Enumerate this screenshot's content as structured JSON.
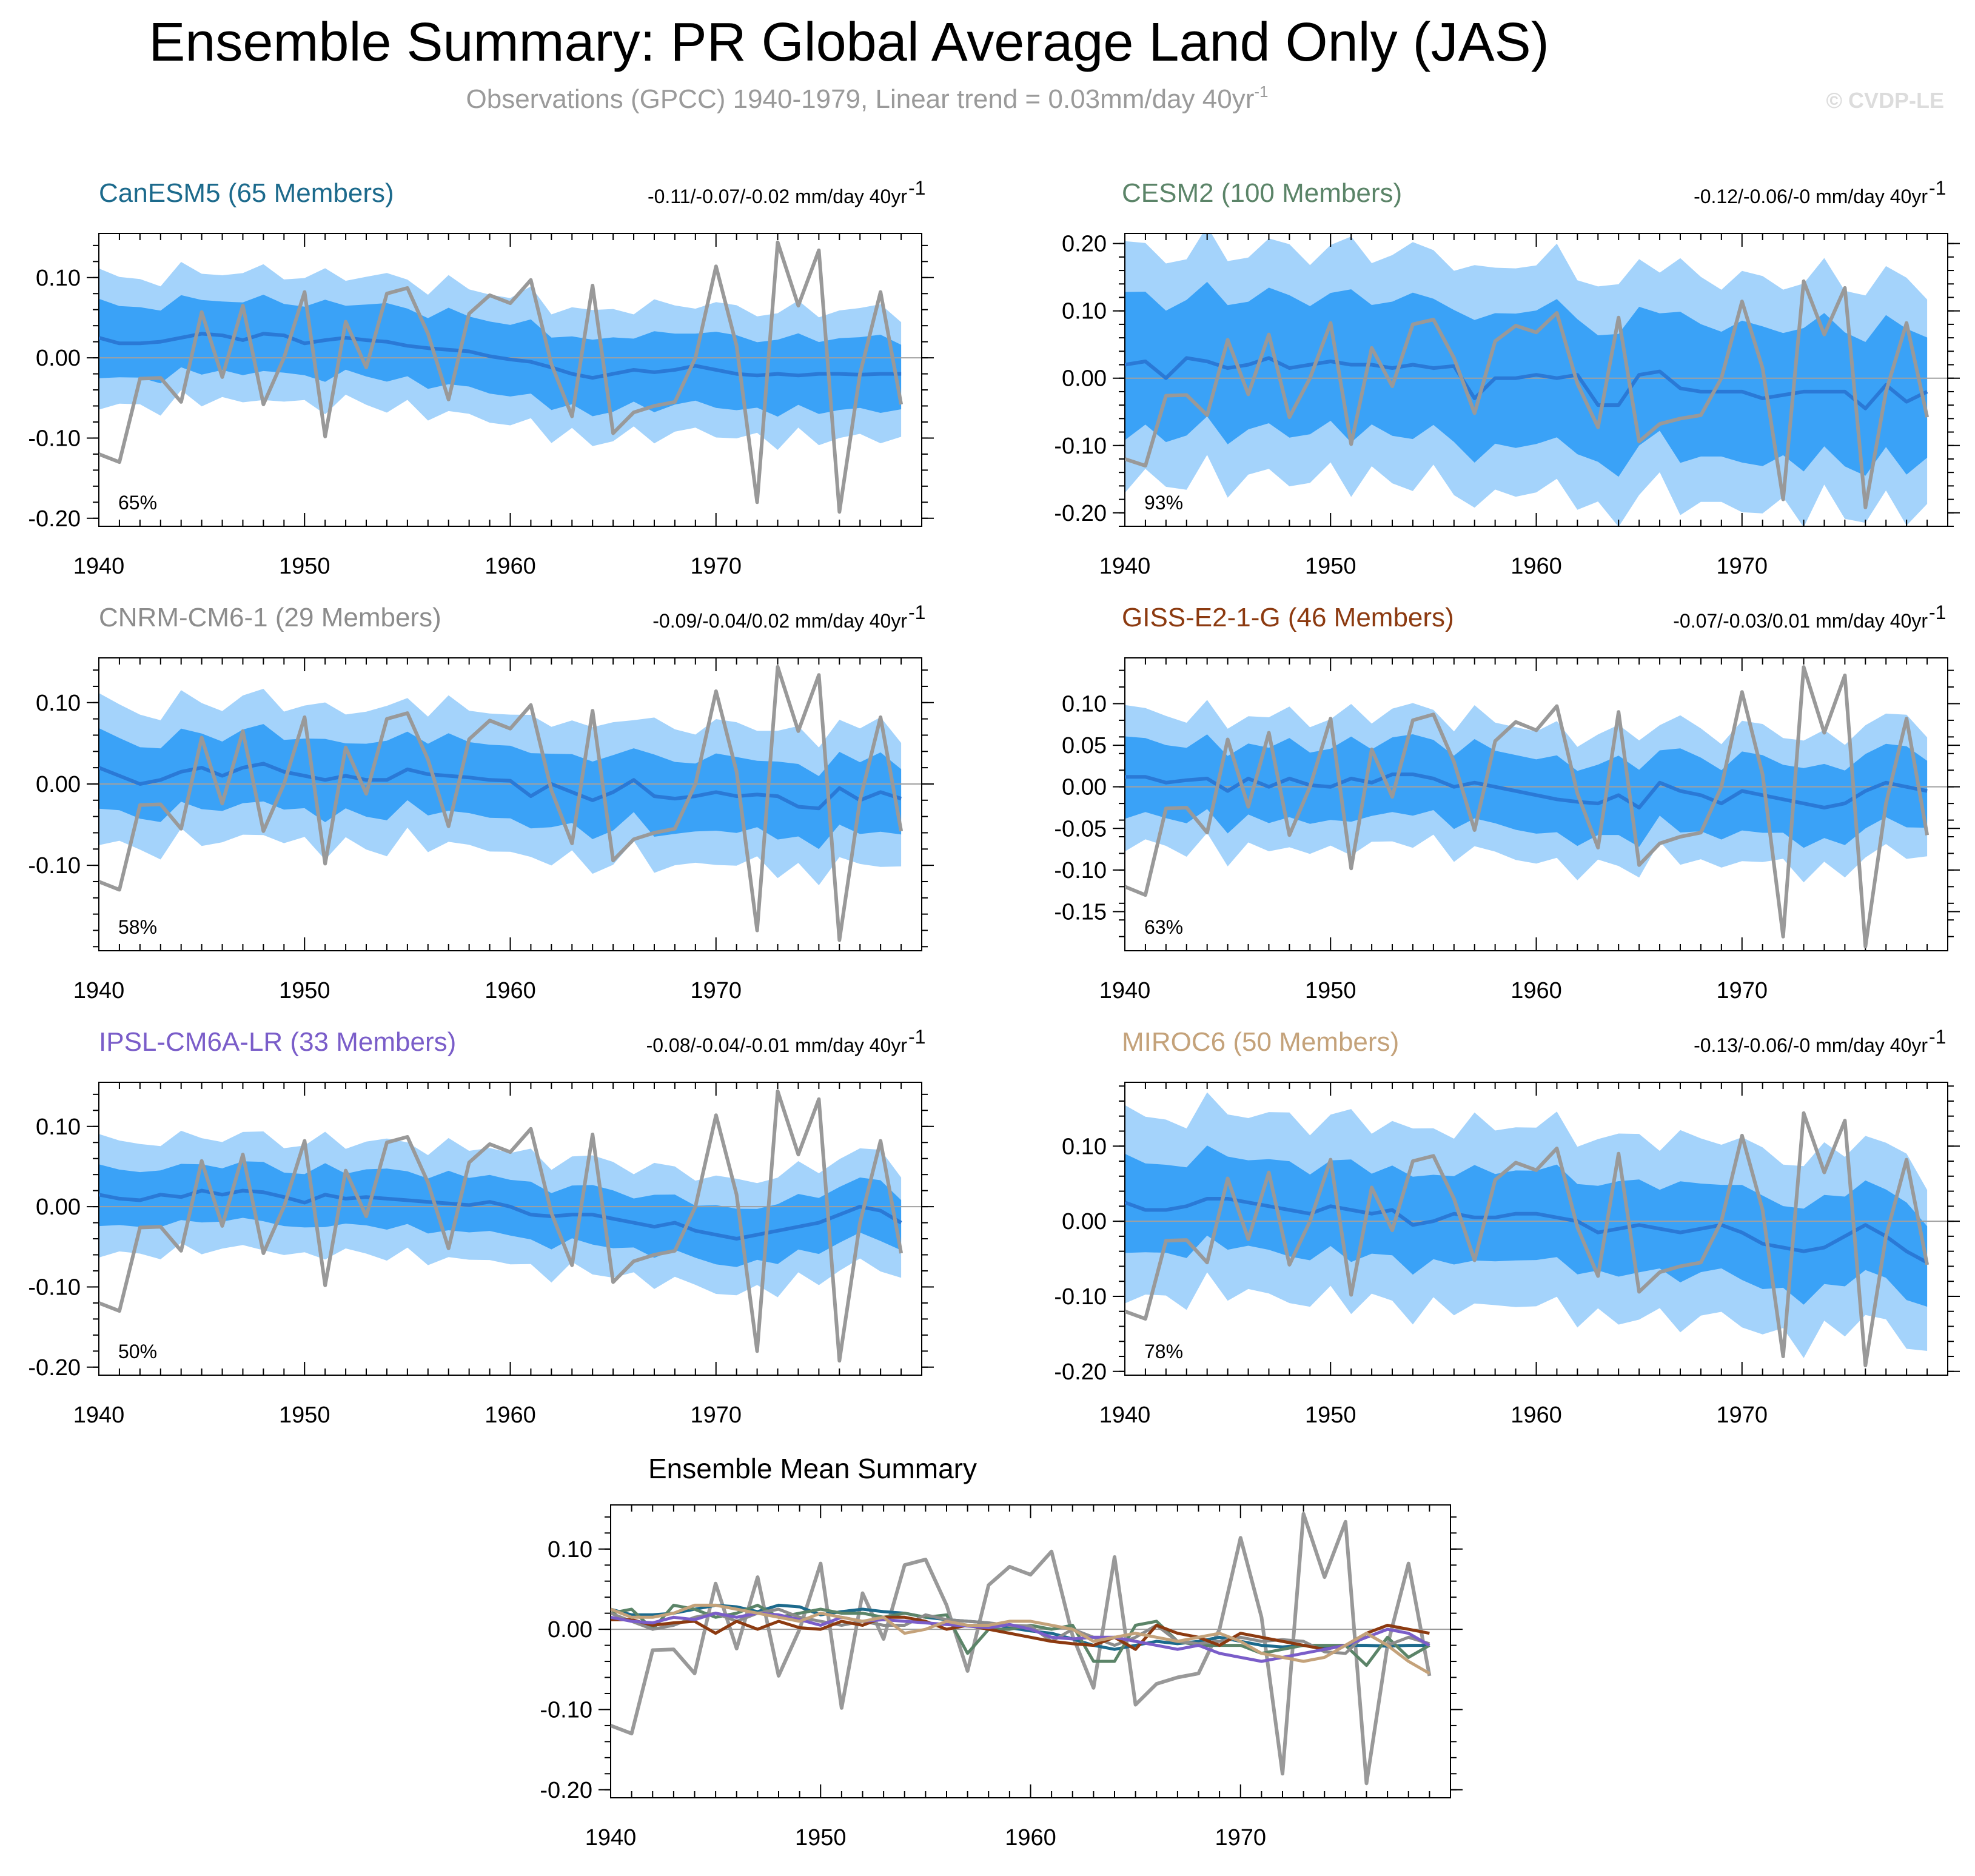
{
  "figure": {
    "title": "Ensemble Summary: PR Global Average Land Only (JAS)",
    "subtitle": "Observations (GPCC) 1940-1979, Linear trend = 0.03mm/day 40yr",
    "subtitle_sup": "-1",
    "watermark": "© CVDP-LE",
    "summary_title": "Ensemble Mean Summary"
  },
  "colors": {
    "outer_band": "#a4d3fb",
    "inner_band": "#3aa2f7",
    "ens_mean": "#2a79d6",
    "observations": "#999999"
  },
  "chart_data": {
    "type": "line",
    "x_label_ticks": [
      "1940",
      "1950",
      "1960",
      "1970"
    ],
    "observations": {
      "name": "GPCC",
      "years": [
        1940,
        1941,
        1942,
        1943,
        1944,
        1945,
        1946,
        1947,
        1948,
        1949,
        1950,
        1951,
        1952,
        1953,
        1954,
        1955,
        1956,
        1957,
        1958,
        1959,
        1960,
        1961,
        1962,
        1963,
        1964,
        1965,
        1966,
        1967,
        1968,
        1969,
        1970,
        1971,
        1972,
        1973,
        1974,
        1975,
        1976,
        1977,
        1978,
        1979
      ],
      "values": [
        -0.12,
        -0.13,
        -0.026,
        -0.025,
        -0.055,
        0.057,
        -0.024,
        0.065,
        -0.058,
        0.0,
        0.082,
        -0.098,
        0.045,
        -0.012,
        0.08,
        0.087,
        0.03,
        -0.052,
        0.055,
        0.078,
        0.068,
        0.097,
        -0.008,
        -0.073,
        0.09,
        -0.094,
        -0.068,
        -0.06,
        -0.055,
        0.0,
        0.114,
        0.015,
        -0.18,
        0.144,
        0.065,
        0.134,
        -0.192,
        -0.02,
        0.082,
        -0.058
      ]
    },
    "panels": [
      {
        "model": "CanESM5",
        "members": "65 Members",
        "title_color": "#1c6a8c",
        "trend": "-0.11/-0.07/-0.02 mm/day 40yr",
        "percent": "65%",
        "ylim": [
          -0.21,
          0.155
        ],
        "yticks": [
          0.1,
          0.0,
          -0.1,
          -0.2
        ],
        "ytick_labels": [
          "0.10",
          "0.00",
          "-0.10",
          "-0.20"
        ],
        "mean": [
          0.025,
          0.018,
          0.018,
          0.02,
          0.025,
          0.03,
          0.028,
          0.022,
          0.03,
          0.028,
          0.018,
          0.022,
          0.025,
          0.022,
          0.02,
          0.015,
          0.012,
          0.01,
          0.008,
          0.002,
          -0.002,
          -0.005,
          -0.012,
          -0.02,
          -0.025,
          -0.02,
          -0.015,
          -0.018,
          -0.015,
          -0.01,
          -0.015,
          -0.02,
          -0.022,
          -0.02,
          -0.022,
          -0.02,
          -0.02,
          -0.021,
          -0.02,
          -0.02
        ],
        "inner_half": 0.045,
        "outer_half": 0.08
      },
      {
        "model": "CESM2",
        "members": "100 Members",
        "title_color": "#5b8468",
        "trend": "-0.12/-0.06/-0 mm/day 40yr",
        "percent": "93%",
        "ylim": [
          -0.22,
          0.215
        ],
        "yticks": [
          0.2,
          0.1,
          0.0,
          -0.1,
          -0.2
        ],
        "ytick_labels": [
          "0.20",
          "0.10",
          "0.00",
          "-0.10",
          "-0.20"
        ],
        "mean": [
          0.02,
          0.025,
          0.0,
          0.03,
          0.025,
          0.015,
          0.02,
          0.03,
          0.015,
          0.02,
          0.025,
          0.02,
          0.02,
          0.015,
          0.02,
          0.015,
          0.018,
          -0.03,
          0.0,
          0.0,
          0.005,
          0.0,
          0.005,
          -0.04,
          -0.04,
          0.005,
          0.01,
          -0.015,
          -0.02,
          -0.02,
          -0.02,
          -0.03,
          -0.025,
          -0.02,
          -0.02,
          -0.02,
          -0.045,
          -0.01,
          -0.035,
          -0.02
        ],
        "inner_half": 0.1,
        "outer_half": 0.17
      },
      {
        "model": "CNRM-CM6-1",
        "members": "29 Members",
        "title_color": "#8c8c8c",
        "trend": "-0.09/-0.04/0.02 mm/day 40yr",
        "percent": "58%",
        "ylim": [
          -0.205,
          0.155
        ],
        "yticks": [
          0.1,
          0.0,
          -0.1
        ],
        "ytick_labels": [
          "0.10",
          "0.00",
          "-0.10"
        ],
        "mean": [
          0.02,
          0.01,
          0.0,
          0.005,
          0.015,
          0.02,
          0.01,
          0.02,
          0.025,
          0.015,
          0.01,
          0.005,
          0.01,
          0.005,
          0.005,
          0.018,
          0.012,
          0.01,
          0.008,
          0.005,
          0.004,
          -0.015,
          0.0,
          -0.01,
          -0.02,
          -0.01,
          0.005,
          -0.015,
          -0.018,
          -0.015,
          -0.01,
          -0.015,
          -0.013,
          -0.015,
          -0.028,
          -0.03,
          -0.005,
          -0.02,
          -0.01,
          -0.018
        ],
        "inner_half": 0.045,
        "outer_half": 0.085
      },
      {
        "model": "GISS-E2-1-G",
        "members": "46 Members",
        "title_color": "#8c3a10",
        "trend": "-0.07/-0.03/0.01 mm/day 40yr",
        "percent": "63%",
        "ylim": [
          -0.197,
          0.155
        ],
        "yticks": [
          0.1,
          0.05,
          0.0,
          -0.05,
          -0.1,
          -0.15
        ],
        "ytick_labels": [
          "0.10",
          "0.05",
          "0.00",
          "-0.05",
          "-0.10",
          "-0.15"
        ],
        "mean": [
          0.012,
          0.012,
          0.005,
          0.008,
          0.01,
          -0.005,
          0.01,
          0.0,
          0.01,
          0.002,
          0.0,
          0.01,
          0.005,
          0.015,
          0.015,
          0.01,
          0.0,
          0.005,
          0.0,
          -0.005,
          -0.01,
          -0.015,
          -0.018,
          -0.02,
          -0.01,
          -0.025,
          0.005,
          -0.005,
          -0.01,
          -0.02,
          -0.005,
          -0.01,
          -0.015,
          -0.02,
          -0.025,
          -0.02,
          -0.005,
          0.005,
          0.0,
          -0.005
        ],
        "inner_half": 0.045,
        "outer_half": 0.08
      },
      {
        "model": "IPSL-CM6A-LR",
        "members": "33 Members",
        "title_color": "#7a5dc9",
        "trend": "-0.08/-0.04/-0.01 mm/day 40yr",
        "percent": "50%",
        "ylim": [
          -0.21,
          0.155
        ],
        "yticks": [
          0.1,
          0.0,
          -0.1,
          -0.2
        ],
        "ytick_labels": [
          "0.10",
          "0.00",
          "-0.10",
          "-0.20"
        ],
        "mean": [
          0.015,
          0.01,
          0.008,
          0.015,
          0.012,
          0.02,
          0.015,
          0.02,
          0.018,
          0.012,
          0.005,
          0.015,
          0.01,
          0.012,
          0.01,
          0.008,
          0.006,
          0.004,
          0.002,
          0.006,
          0.0,
          -0.01,
          -0.012,
          -0.01,
          -0.01,
          -0.015,
          -0.02,
          -0.025,
          -0.02,
          -0.03,
          -0.035,
          -0.04,
          -0.035,
          -0.03,
          -0.025,
          -0.02,
          -0.01,
          0.0,
          -0.005,
          -0.02
        ],
        "inner_half": 0.035,
        "outer_half": 0.07
      },
      {
        "model": "MIROC6",
        "members": "50 Members",
        "title_color": "#c4a27a",
        "trend": "-0.13/-0.06/-0 mm/day 40yr",
        "percent": "78%",
        "ylim": [
          -0.205,
          0.185
        ],
        "yticks": [
          0.1,
          0.0,
          -0.1,
          -0.2
        ],
        "ytick_labels": [
          "0.10",
          "0.00",
          "-0.10",
          "-0.20"
        ],
        "mean": [
          0.025,
          0.015,
          0.015,
          0.02,
          0.03,
          0.03,
          0.025,
          0.02,
          0.015,
          0.01,
          0.02,
          0.015,
          0.01,
          0.015,
          -0.005,
          0.0,
          0.01,
          0.005,
          0.005,
          0.01,
          0.01,
          0.005,
          0.0,
          -0.015,
          -0.01,
          -0.005,
          -0.01,
          -0.015,
          -0.01,
          -0.005,
          -0.015,
          -0.03,
          -0.035,
          -0.04,
          -0.035,
          -0.02,
          -0.005,
          -0.02,
          -0.04,
          -0.055
        ],
        "inner_half": 0.06,
        "outer_half": 0.12
      }
    ],
    "summary": {
      "ylim": [
        -0.21,
        0.155
      ],
      "yticks": [
        0.1,
        0.0,
        -0.1,
        -0.2
      ],
      "ytick_labels": [
        "0.10",
        "0.00",
        "-0.10",
        "-0.20"
      ],
      "series": [
        {
          "name": "CanESM5",
          "color": "#1c6a8c"
        },
        {
          "name": "CESM2",
          "color": "#5b8468"
        },
        {
          "name": "CNRM-CM6-1",
          "color": "#8c8c8c"
        },
        {
          "name": "GISS-E2-1-G",
          "color": "#8c3a10"
        },
        {
          "name": "IPSL-CM6A-LR",
          "color": "#7a5dc9"
        },
        {
          "name": "MIROC6",
          "color": "#c4a27a"
        },
        {
          "name": "Observations",
          "color": "#999999"
        }
      ]
    }
  }
}
